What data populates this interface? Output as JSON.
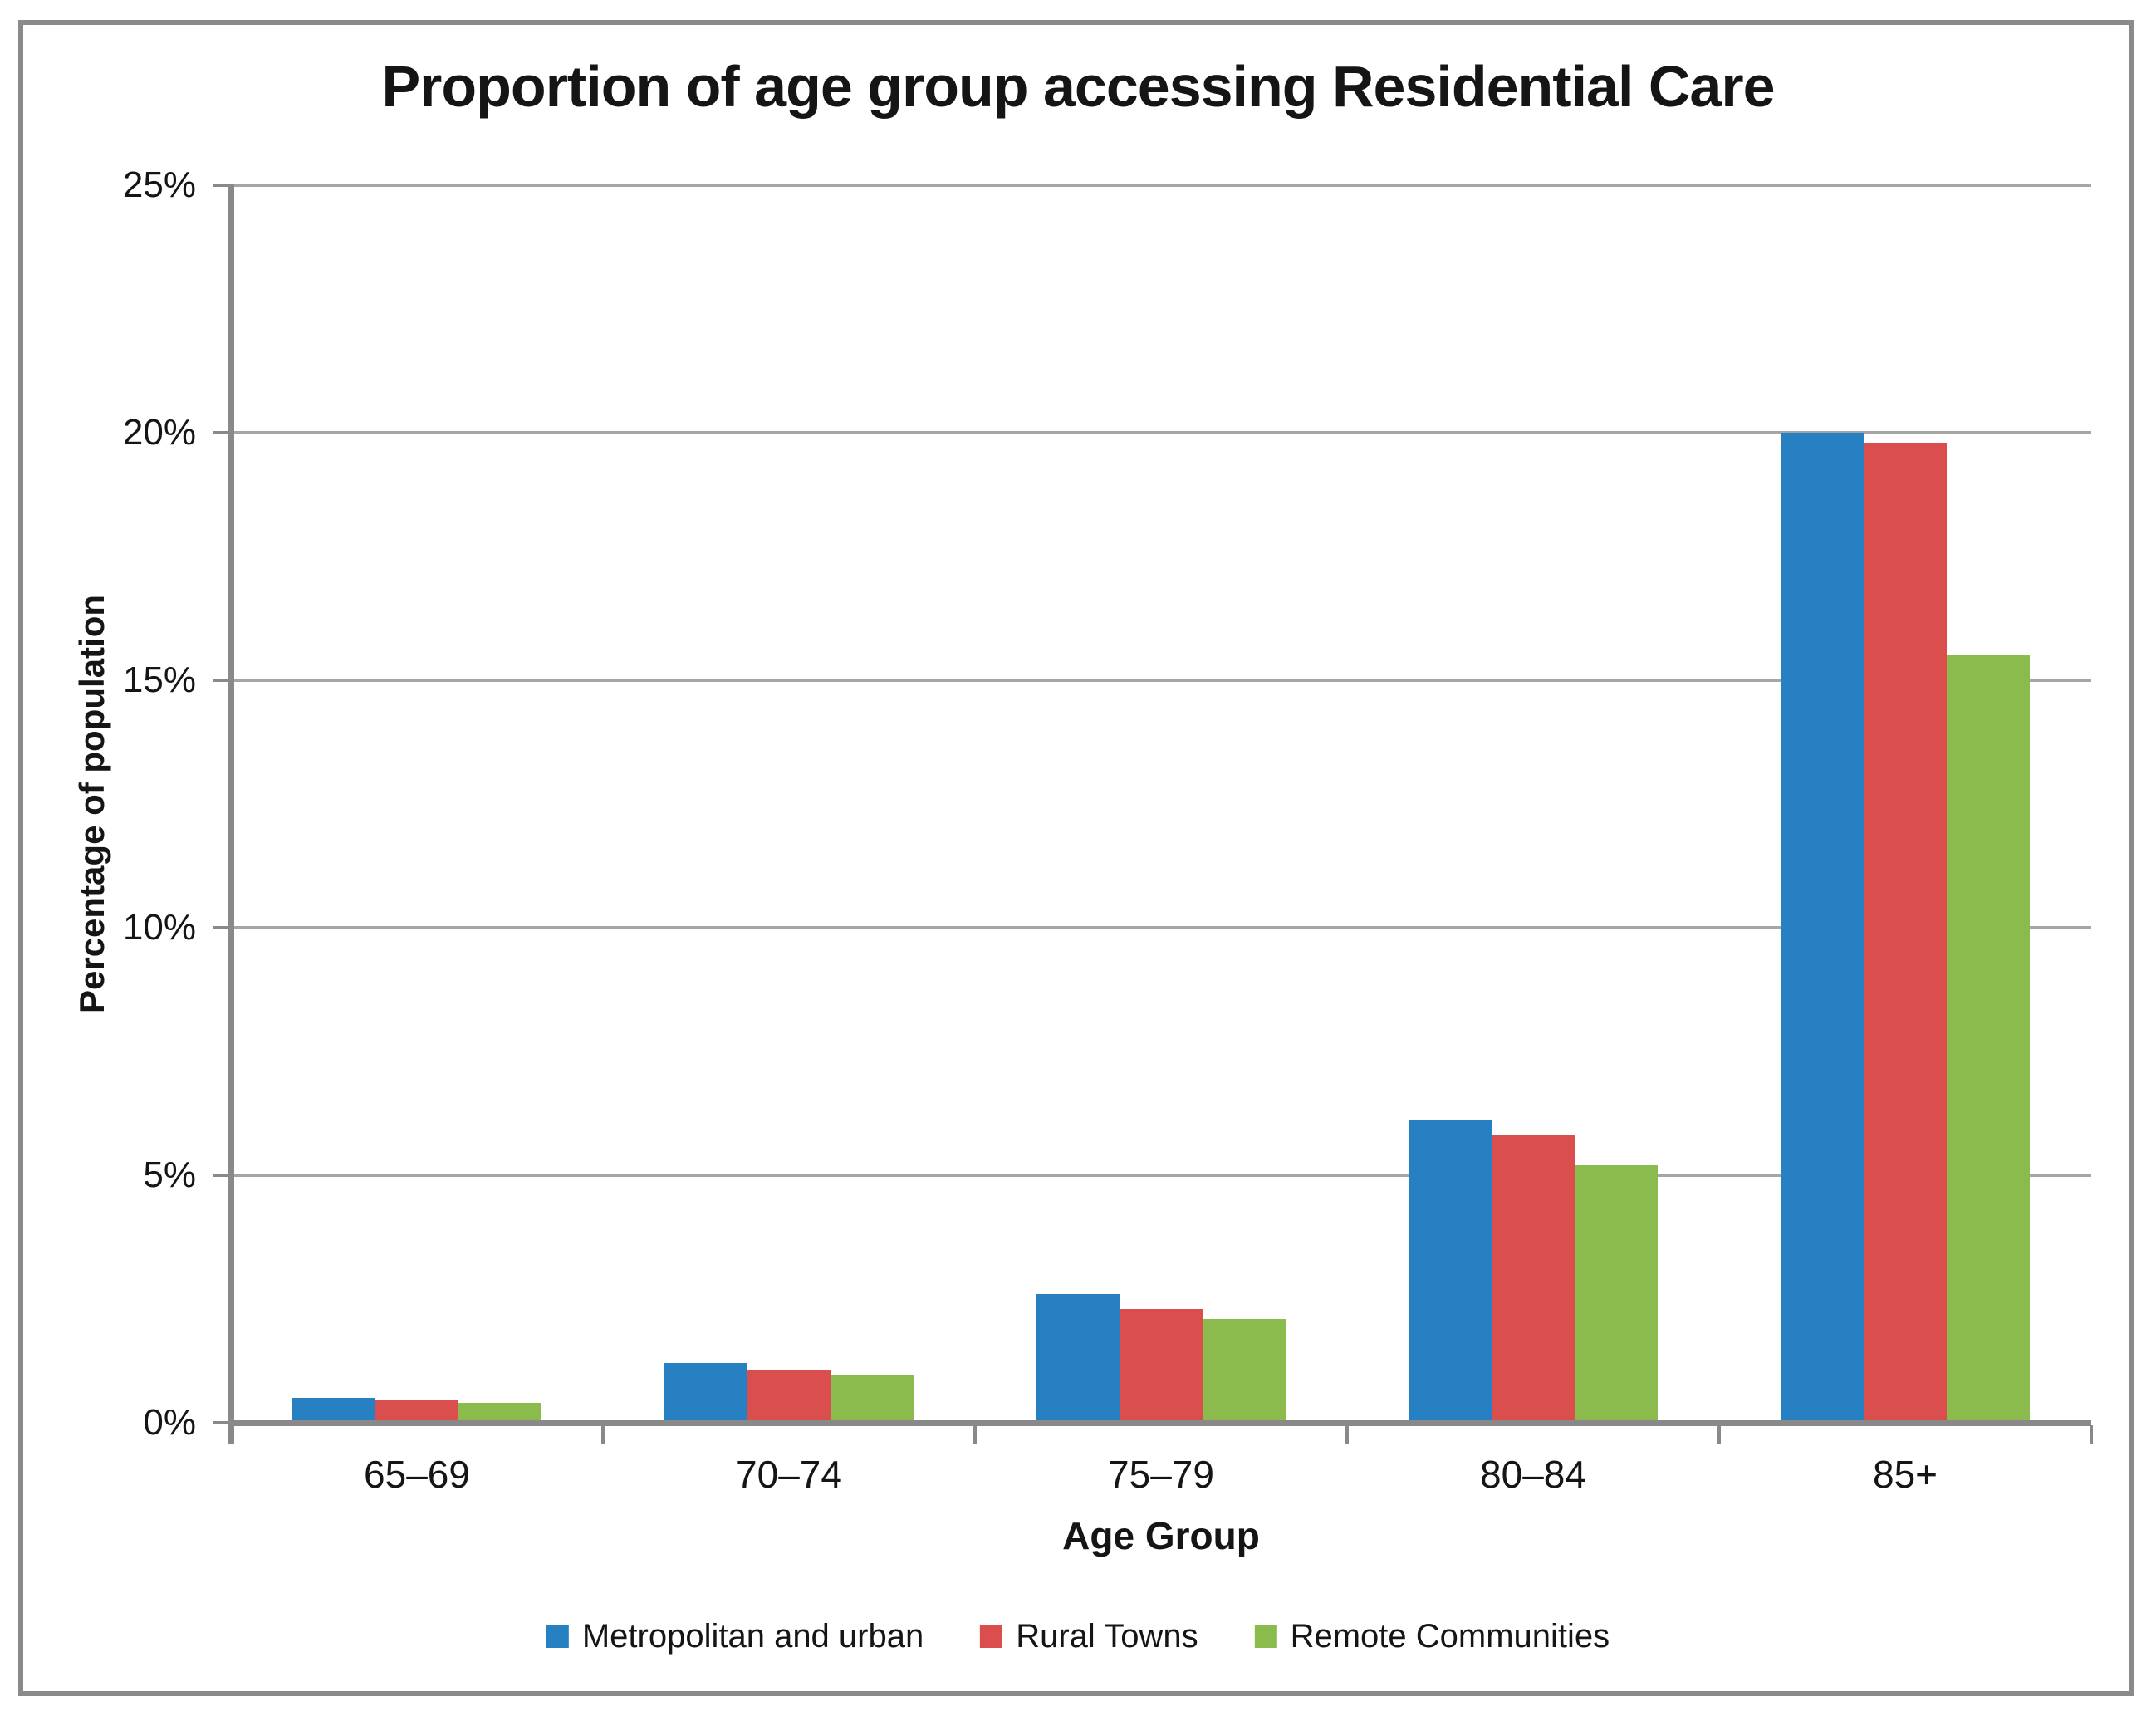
{
  "title": "Proportion of age group accessing Residential Care",
  "chart_data": {
    "type": "bar",
    "categories": [
      "65–69",
      "70–74",
      "75–79",
      "80–84",
      "85+"
    ],
    "series": [
      {
        "name": "Metropolitan and urban",
        "color": "#2680c2",
        "values": [
          0.5,
          1.2,
          2.6,
          6.1,
          20.0
        ]
      },
      {
        "name": "Rural Towns",
        "color": "#da4f4e",
        "values": [
          0.45,
          1.05,
          2.3,
          5.8,
          19.8
        ]
      },
      {
        "name": "Remote Communities",
        "color": "#8cbb4d",
        "values": [
          0.4,
          0.95,
          2.1,
          5.2,
          15.5
        ]
      }
    ],
    "xlabel": "Age Group",
    "ylabel": "Percentage of population",
    "ylim": [
      0,
      25
    ],
    "ytick_step": 5,
    "ytick_labels": [
      "0%",
      "5%",
      "10%",
      "15%",
      "20%",
      "25%"
    ],
    "grid": true,
    "legend_position": "bottom"
  },
  "style_colors": {
    "gridline": "#a6a6a6",
    "axis": "#898989",
    "frame_border": "#8a8a8a",
    "text": "#151515"
  }
}
